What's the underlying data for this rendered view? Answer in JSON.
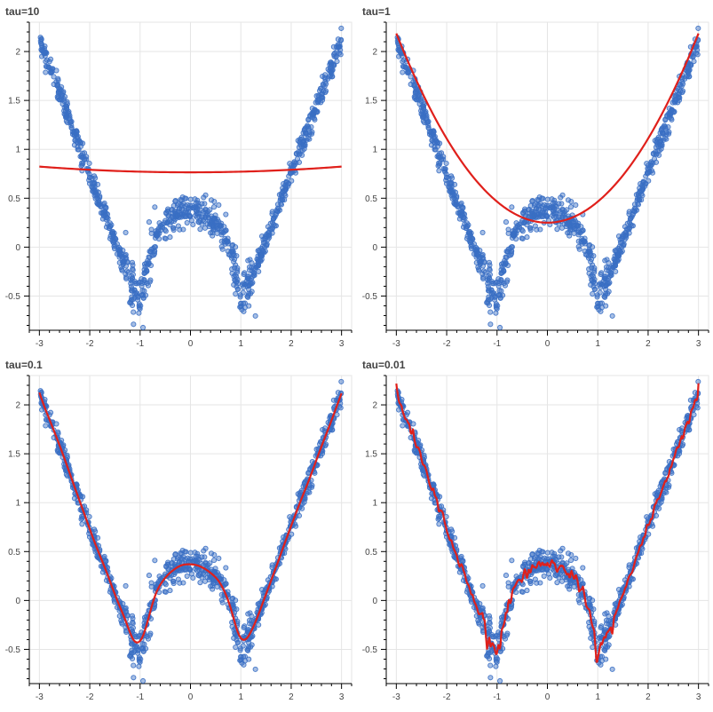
{
  "colors": {
    "points": "#3a6fc4",
    "fit": "#e0201b"
  },
  "chart_data": [
    {
      "type": "scatter",
      "title": "tau=10",
      "xlim": [
        -3.2,
        3.2
      ],
      "ylim": [
        -0.85,
        2.3
      ],
      "xticks": [
        -3,
        -2,
        -1,
        0,
        1,
        2,
        3
      ],
      "yticks": [
        -0.5,
        0,
        0.5,
        1,
        1.5,
        2
      ],
      "xticklabels": [
        "-3",
        "-2",
        "-1",
        "0",
        "1",
        "2",
        "3"
      ],
      "yticklabels": [
        "-0.5",
        "0",
        "0.5",
        "1",
        "1.5",
        "2"
      ],
      "series": [
        {
          "kind": "points",
          "function": "|x| + cos(pi*x)/... (|x| ≥ ~0.5: |sin-like V|), noisy samples",
          "x_range": [
            -3,
            3
          ],
          "count": 1000
        },
        {
          "kind": "fit_line",
          "x": [
            -3,
            -2,
            -1,
            0,
            1,
            2,
            3
          ],
          "y": [
            0.82,
            0.79,
            0.77,
            0.76,
            0.77,
            0.79,
            0.82
          ]
        }
      ]
    },
    {
      "type": "scatter",
      "title": "tau=1",
      "xlim": [
        -3.2,
        3.2
      ],
      "ylim": [
        -0.85,
        2.3
      ],
      "xticks": [
        -3,
        -2,
        -1,
        0,
        1,
        2,
        3
      ],
      "yticks": [
        -0.5,
        0,
        0.5,
        1,
        1.5,
        2
      ],
      "xticklabels": [
        "-3",
        "-2",
        "-1",
        "0",
        "1",
        "2",
        "3"
      ],
      "yticklabels": [
        "-0.5",
        "0",
        "0.5",
        "1",
        "1.5",
        "2"
      ],
      "series": [
        {
          "kind": "points",
          "x_range": [
            -3,
            3
          ],
          "count": 1000
        },
        {
          "kind": "fit_line",
          "x": [
            -3,
            -2.5,
            -2,
            -1.5,
            -1,
            -0.5,
            0,
            0.5,
            1,
            1.5,
            2,
            2.5,
            3
          ],
          "y": [
            2.18,
            1.72,
            1.28,
            0.88,
            0.55,
            0.33,
            0.25,
            0.33,
            0.55,
            0.88,
            1.28,
            1.72,
            2.2
          ]
        }
      ]
    },
    {
      "type": "scatter",
      "title": "tau=0.1",
      "xlim": [
        -3.2,
        3.2
      ],
      "ylim": [
        -0.85,
        2.3
      ],
      "xticks": [
        -3,
        -2,
        -1,
        0,
        1,
        2,
        3
      ],
      "yticks": [
        -0.5,
        0,
        0.5,
        1,
        1.5,
        2
      ],
      "xticklabels": [
        "-3",
        "-2",
        "-1",
        "0",
        "1",
        "2",
        "3"
      ],
      "yticklabels": [
        "-0.5",
        "0",
        "0.5",
        "1",
        "1.5",
        "2"
      ],
      "series": [
        {
          "kind": "points",
          "x_range": [
            -3,
            3
          ],
          "count": 1000
        },
        {
          "kind": "fit_line",
          "smooth": true
        }
      ]
    },
    {
      "type": "scatter",
      "title": "tau=0.01",
      "xlim": [
        -3.2,
        3.2
      ],
      "ylim": [
        -0.85,
        2.3
      ],
      "xticks": [
        -3,
        -2,
        -1,
        0,
        1,
        2,
        3
      ],
      "yticks": [
        -0.5,
        0,
        0.5,
        1,
        1.5,
        2
      ],
      "xticklabels": [
        "-3",
        "-2",
        "-1",
        "0",
        "1",
        "2",
        "3"
      ],
      "yticklabels": [
        "-0.5",
        "0",
        "0.5",
        "1",
        "1.5",
        "2"
      ],
      "series": [
        {
          "kind": "points",
          "x_range": [
            -3,
            3
          ],
          "count": 1000
        },
        {
          "kind": "fit_line",
          "jagged": true
        }
      ]
    }
  ]
}
